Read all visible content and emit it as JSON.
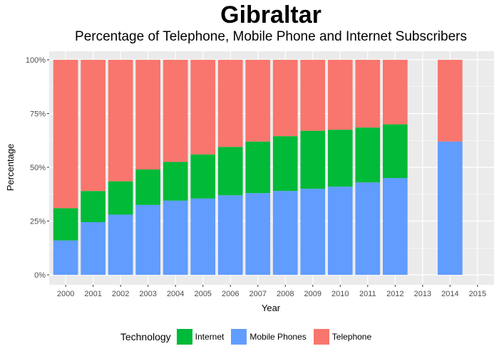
{
  "colors": {
    "internet": "#00BA38",
    "mobile": "#619CFF",
    "telephone": "#F8766D",
    "panel_bg": "#EBEBEB",
    "grid": "#FFFFFF"
  },
  "chart_data": {
    "type": "bar",
    "stacked": true,
    "title": "Gibraltar",
    "subtitle": "Percentage of Telephone, Mobile Phone and Internet Subscribers",
    "xlabel": "Year",
    "ylabel": "Percentage",
    "ylim": [
      0,
      100
    ],
    "y_ticks": [
      "0%",
      "25%",
      "50%",
      "75%",
      "100%"
    ],
    "y_tick_values": [
      0,
      25,
      50,
      75,
      100
    ],
    "categories": [
      "2000",
      "2001",
      "2002",
      "2003",
      "2004",
      "2005",
      "2006",
      "2007",
      "2008",
      "2009",
      "2010",
      "2011",
      "2012",
      "2013",
      "2014",
      "2015"
    ],
    "grid": true,
    "legend_position": "bottom",
    "legend_title": "Technology",
    "series": [
      {
        "name": "Mobile Phones",
        "color_key": "mobile",
        "values": [
          16,
          24.5,
          28,
          32.5,
          34.5,
          35.5,
          37,
          38,
          39,
          40,
          41,
          43,
          45,
          0,
          62,
          0
        ]
      },
      {
        "name": "Internet",
        "color_key": "internet",
        "values": [
          15,
          14.5,
          15.5,
          16.5,
          18,
          20.5,
          22.5,
          24,
          25.5,
          27,
          26.5,
          25.5,
          25,
          0,
          0,
          0
        ]
      },
      {
        "name": "Telephone",
        "color_key": "telephone",
        "values": [
          69,
          61,
          56.5,
          51,
          47.5,
          44,
          40.5,
          38,
          35.5,
          33,
          32.5,
          31.5,
          30,
          0,
          38,
          0
        ]
      }
    ],
    "legend_order": [
      "Internet",
      "Mobile Phones",
      "Telephone"
    ]
  }
}
